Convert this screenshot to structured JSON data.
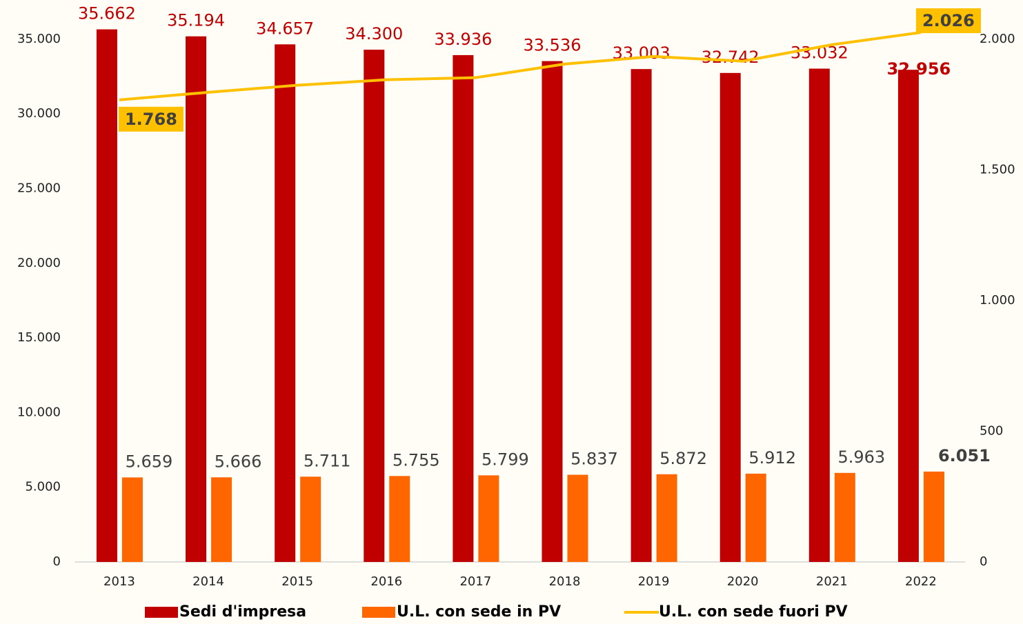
{
  "chart_data": {
    "type": "bar_line",
    "categories": [
      "2013",
      "2014",
      "2015",
      "2016",
      "2017",
      "2018",
      "2019",
      "2020",
      "2021",
      "2022"
    ],
    "series": [
      {
        "name": "Sedi d'impresa",
        "color": "#c00000",
        "type": "bar",
        "values": [
          35662,
          35194,
          34657,
          34300,
          33936,
          33536,
          33003,
          32742,
          33032,
          32956
        ],
        "value_labels": [
          "35.662",
          "35.194",
          "34.657",
          "34.300",
          "33.936",
          "33.536",
          "33.003",
          "32.742",
          "33.032",
          "32.956"
        ]
      },
      {
        "name": "U.L. con sede in PV",
        "color": "#ff6600",
        "type": "bar",
        "values": [
          5659,
          5666,
          5711,
          5755,
          5799,
          5837,
          5872,
          5912,
          5963,
          6051
        ],
        "value_labels": [
          "5.659",
          "5.666",
          "5.711",
          "5.755",
          "5.799",
          "5.837",
          "5.872",
          "5.912",
          "5.963",
          "6.051"
        ]
      },
      {
        "name": "U.L. con sede fuori PV",
        "color": "#ffc000",
        "type": "line",
        "axis": "y2",
        "values": [
          1768,
          1797,
          1824,
          1845,
          1853,
          1905,
          1934,
          1916,
          1979,
          2026
        ],
        "value_labels": [
          "1.768",
          null,
          null,
          null,
          null,
          null,
          null,
          null,
          null,
          "2.026"
        ]
      }
    ],
    "ylim": [
      0,
      36750
    ],
    "yticks": [
      0,
      {
        "value": 5000,
        "label": "5.000"
      },
      {
        "value": 10000,
        "label": "10.000"
      },
      {
        "value": 15000,
        "label": "15.000"
      },
      {
        "value": 20000,
        "label": "20.000"
      },
      {
        "value": 25000,
        "label": "25.000"
      },
      {
        "value": 30000,
        "label": "30.000"
      },
      {
        "value": 35000,
        "label": "35.000"
      }
    ],
    "y2lim": [
      0,
      2100
    ],
    "y2ticks": [
      0,
      500,
      {
        "value": 1000,
        "label": "1.000"
      },
      {
        "value": 1500,
        "label": "1.500"
      },
      {
        "value": 2000,
        "label": "2.000"
      }
    ],
    "grid": false,
    "legend": "bottom"
  }
}
